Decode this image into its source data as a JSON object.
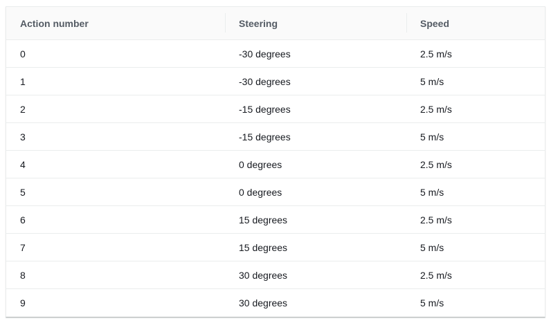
{
  "table": {
    "headers": [
      "Action number",
      "Steering",
      "Speed"
    ],
    "rows": [
      [
        "0",
        "-30 degrees",
        "2.5 m/s"
      ],
      [
        "1",
        "-30 degrees",
        "5 m/s"
      ],
      [
        "2",
        "-15 degrees",
        "2.5 m/s"
      ],
      [
        "3",
        "-15 degrees",
        "5 m/s"
      ],
      [
        "4",
        "0 degrees",
        "2.5 m/s"
      ],
      [
        "5",
        "0 degrees",
        "5 m/s"
      ],
      [
        "6",
        "15 degrees",
        "2.5 m/s"
      ],
      [
        "7",
        "15 degrees",
        "5 m/s"
      ],
      [
        "8",
        "30 degrees",
        "2.5 m/s"
      ],
      [
        "9",
        "30 degrees",
        "5 m/s"
      ]
    ]
  },
  "colors": {
    "header_background": "#fafafa",
    "header_text": "#545b64",
    "body_text": "#16191f",
    "row_divider": "#eaeded"
  }
}
